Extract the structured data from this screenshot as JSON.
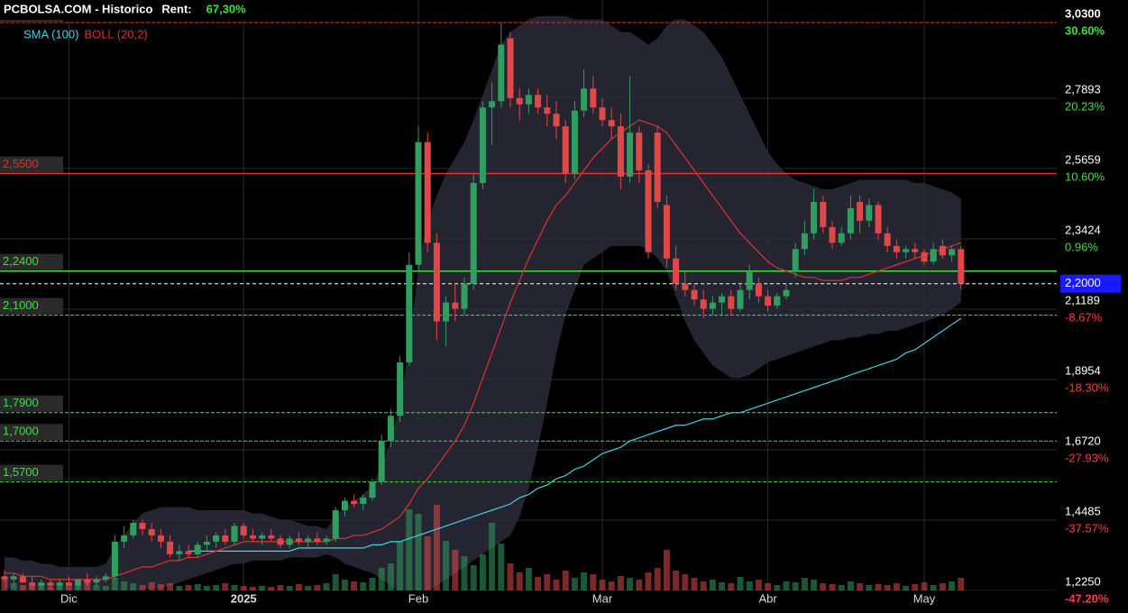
{
  "chart_data": {
    "type": "candlestick",
    "title": "PCBOLSA.COM - Historico",
    "rent_label": "Rent:",
    "rent_value": "67,30%",
    "categories": [
      null,
      null,
      null,
      null,
      null,
      null,
      null,
      "Dic",
      null,
      null,
      null,
      null,
      null,
      null,
      null,
      null,
      null,
      null,
      null,
      null,
      null,
      null,
      null,
      null,
      null,
      null,
      "2025",
      null,
      null,
      null,
      null,
      null,
      null,
      null,
      null,
      null,
      null,
      null,
      null,
      null,
      null,
      null,
      null,
      null,
      null,
      "Feb",
      null,
      null,
      null,
      null,
      null,
      null,
      null,
      null,
      null,
      null,
      null,
      null,
      null,
      null,
      null,
      null,
      null,
      null,
      null,
      "Mar",
      null,
      null,
      null,
      null,
      null,
      null,
      null,
      null,
      null,
      null,
      null,
      null,
      null,
      null,
      null,
      null,
      null,
      "Abr",
      null,
      null,
      null,
      null,
      null,
      null,
      null,
      null,
      null,
      null,
      null,
      null,
      null,
      null,
      null,
      null,
      "May",
      null,
      null,
      null,
      null
    ],
    "ohlc": [
      [
        1.27,
        1.29,
        1.25,
        1.26
      ],
      [
        1.26,
        1.28,
        1.24,
        1.27
      ],
      [
        1.27,
        1.28,
        1.25,
        1.25
      ],
      [
        1.25,
        1.27,
        1.23,
        1.24
      ],
      [
        1.24,
        1.26,
        1.23,
        1.25
      ],
      [
        1.25,
        1.26,
        1.23,
        1.24
      ],
      [
        1.24,
        1.26,
        1.23,
        1.25
      ],
      [
        1.25,
        1.27,
        1.24,
        1.24
      ],
      [
        1.24,
        1.26,
        1.23,
        1.26
      ],
      [
        1.26,
        1.28,
        1.24,
        1.25
      ],
      [
        1.25,
        1.27,
        1.24,
        1.26
      ],
      [
        1.26,
        1.28,
        1.25,
        1.27
      ],
      [
        1.27,
        1.4,
        1.26,
        1.38
      ],
      [
        1.38,
        1.43,
        1.36,
        1.4
      ],
      [
        1.4,
        1.45,
        1.39,
        1.44
      ],
      [
        1.44,
        1.45,
        1.4,
        1.42
      ],
      [
        1.42,
        1.44,
        1.38,
        1.4
      ],
      [
        1.4,
        1.42,
        1.36,
        1.38
      ],
      [
        1.38,
        1.4,
        1.33,
        1.34
      ],
      [
        1.34,
        1.37,
        1.32,
        1.35
      ],
      [
        1.35,
        1.37,
        1.33,
        1.34
      ],
      [
        1.34,
        1.38,
        1.33,
        1.37
      ],
      [
        1.37,
        1.4,
        1.35,
        1.38
      ],
      [
        1.38,
        1.41,
        1.36,
        1.4
      ],
      [
        1.4,
        1.42,
        1.37,
        1.38
      ],
      [
        1.38,
        1.44,
        1.37,
        1.43
      ],
      [
        1.43,
        1.44,
        1.39,
        1.4
      ],
      [
        1.4,
        1.42,
        1.38,
        1.39
      ],
      [
        1.39,
        1.41,
        1.37,
        1.4
      ],
      [
        1.4,
        1.42,
        1.38,
        1.39
      ],
      [
        1.39,
        1.4,
        1.36,
        1.37
      ],
      [
        1.37,
        1.4,
        1.36,
        1.39
      ],
      [
        1.39,
        1.41,
        1.37,
        1.38
      ],
      [
        1.38,
        1.4,
        1.36,
        1.39
      ],
      [
        1.39,
        1.41,
        1.37,
        1.38
      ],
      [
        1.38,
        1.4,
        1.37,
        1.39
      ],
      [
        1.39,
        1.49,
        1.38,
        1.48
      ],
      [
        1.48,
        1.52,
        1.46,
        1.51
      ],
      [
        1.51,
        1.53,
        1.49,
        1.5
      ],
      [
        1.5,
        1.53,
        1.48,
        1.52
      ],
      [
        1.52,
        1.58,
        1.51,
        1.57
      ],
      [
        1.57,
        1.72,
        1.56,
        1.7
      ],
      [
        1.7,
        1.8,
        1.68,
        1.78
      ],
      [
        1.78,
        1.97,
        1.76,
        1.95
      ],
      [
        1.95,
        2.3,
        1.94,
        2.26
      ],
      [
        2.26,
        2.7,
        2.24,
        2.65
      ],
      [
        2.65,
        2.68,
        2.3,
        2.33
      ],
      [
        2.33,
        2.36,
        2.02,
        2.08
      ],
      [
        2.08,
        2.16,
        2.0,
        2.14
      ],
      [
        2.14,
        2.2,
        2.08,
        2.12
      ],
      [
        2.12,
        2.22,
        2.1,
        2.2
      ],
      [
        2.2,
        2.55,
        2.18,
        2.52
      ],
      [
        2.52,
        2.78,
        2.5,
        2.76
      ],
      [
        2.76,
        2.84,
        2.64,
        2.78
      ],
      [
        2.78,
        3.03,
        2.76,
        2.96
      ],
      [
        2.98,
        3.0,
        2.76,
        2.79
      ],
      [
        2.79,
        2.82,
        2.72,
        2.77
      ],
      [
        2.77,
        2.82,
        2.74,
        2.8
      ],
      [
        2.8,
        2.82,
        2.74,
        2.76
      ],
      [
        2.76,
        2.8,
        2.7,
        2.74
      ],
      [
        2.74,
        2.78,
        2.66,
        2.7
      ],
      [
        2.7,
        2.72,
        2.52,
        2.55
      ],
      [
        2.55,
        2.78,
        2.53,
        2.75
      ],
      [
        2.75,
        2.88,
        2.73,
        2.82
      ],
      [
        2.82,
        2.86,
        2.74,
        2.76
      ],
      [
        2.76,
        2.79,
        2.7,
        2.72
      ],
      [
        2.72,
        2.76,
        2.66,
        2.7
      ],
      [
        2.7,
        2.74,
        2.5,
        2.54
      ],
      [
        2.54,
        2.86,
        2.52,
        2.68
      ],
      [
        2.68,
        2.7,
        2.52,
        2.56
      ],
      [
        2.56,
        2.58,
        2.28,
        2.3
      ],
      [
        2.68,
        2.7,
        2.44,
        2.46
      ],
      [
        2.45,
        2.48,
        2.25,
        2.28
      ],
      [
        2.28,
        2.32,
        2.18,
        2.2
      ],
      [
        2.2,
        2.24,
        2.16,
        2.18
      ],
      [
        2.18,
        2.2,
        2.13,
        2.15
      ],
      [
        2.15,
        2.18,
        2.09,
        2.12
      ],
      [
        2.12,
        2.16,
        2.1,
        2.14
      ],
      [
        2.14,
        2.17,
        2.1,
        2.16
      ],
      [
        2.16,
        2.18,
        2.1,
        2.12
      ],
      [
        2.12,
        2.2,
        2.11,
        2.18
      ],
      [
        2.18,
        2.26,
        2.15,
        2.24
      ],
      [
        2.2,
        2.22,
        2.14,
        2.16
      ],
      [
        2.16,
        2.18,
        2.11,
        2.13
      ],
      [
        2.13,
        2.17,
        2.12,
        2.16
      ],
      [
        2.16,
        2.2,
        2.15,
        2.18
      ],
      [
        2.24,
        2.33,
        2.22,
        2.31
      ],
      [
        2.31,
        2.4,
        2.29,
        2.36
      ],
      [
        2.36,
        2.5,
        2.34,
        2.46
      ],
      [
        2.46,
        2.48,
        2.36,
        2.38
      ],
      [
        2.38,
        2.4,
        2.31,
        2.33
      ],
      [
        2.33,
        2.38,
        2.32,
        2.36
      ],
      [
        2.36,
        2.48,
        2.34,
        2.44
      ],
      [
        2.46,
        2.48,
        2.36,
        2.4
      ],
      [
        2.4,
        2.47,
        2.38,
        2.45
      ],
      [
        2.45,
        2.46,
        2.34,
        2.36
      ],
      [
        2.36,
        2.38,
        2.3,
        2.32
      ],
      [
        2.32,
        2.34,
        2.28,
        2.3
      ],
      [
        2.3,
        2.32,
        2.28,
        2.31
      ],
      [
        2.31,
        2.33,
        2.28,
        2.3
      ],
      [
        2.3,
        2.31,
        2.26,
        2.27
      ],
      [
        2.27,
        2.33,
        2.26,
        2.31
      ],
      [
        2.32,
        2.34,
        2.28,
        2.29
      ],
      [
        2.29,
        2.32,
        2.27,
        2.31
      ],
      [
        2.31,
        2.32,
        2.18,
        2.2
      ]
    ],
    "volume": [
      12,
      8,
      6,
      5,
      8,
      4,
      6,
      5,
      7,
      10,
      6,
      5,
      14,
      10,
      8,
      6,
      9,
      7,
      8,
      5,
      6,
      7,
      5,
      6,
      8,
      6,
      5,
      4,
      5,
      4,
      6,
      5,
      7,
      5,
      6,
      8,
      18,
      12,
      10,
      9,
      14,
      25,
      30,
      55,
      90,
      85,
      60,
      95,
      55,
      45,
      38,
      28,
      40,
      75,
      52,
      30,
      20,
      25,
      15,
      18,
      12,
      22,
      14,
      20,
      18,
      12,
      10,
      16,
      14,
      12,
      20,
      25,
      45,
      22,
      18,
      14,
      10,
      12,
      9,
      8,
      15,
      10,
      12,
      8,
      6,
      10,
      9,
      14,
      12,
      8,
      7,
      6,
      10,
      8,
      6,
      7,
      6,
      8,
      5,
      7,
      9,
      6,
      8,
      10,
      14
    ],
    "colors": {
      "up": "#2f9e5e",
      "down": "#e04848",
      "band": "#2b2b3a"
    },
    "indicators": [
      {
        "name": "SMA (100)",
        "color": "#3fd3e6",
        "values": [
          null,
          null,
          null,
          null,
          null,
          null,
          null,
          null,
          null,
          null,
          null,
          null,
          null,
          null,
          null,
          null,
          null,
          null,
          null,
          null,
          1.35,
          1.35,
          1.35,
          1.35,
          1.35,
          1.35,
          1.35,
          1.35,
          1.35,
          1.35,
          1.35,
          1.35,
          1.36,
          1.36,
          1.36,
          1.36,
          1.36,
          1.36,
          1.36,
          1.36,
          1.37,
          1.37,
          1.38,
          1.38,
          1.39,
          1.4,
          1.41,
          1.42,
          1.43,
          1.44,
          1.45,
          1.46,
          1.47,
          1.48,
          1.49,
          1.5,
          1.52,
          1.53,
          1.55,
          1.56,
          1.58,
          1.59,
          1.61,
          1.62,
          1.64,
          1.66,
          1.67,
          1.68,
          1.7,
          1.71,
          1.72,
          1.73,
          1.74,
          1.75,
          1.75,
          1.76,
          1.77,
          1.77,
          1.78,
          1.79,
          1.79,
          1.8,
          1.81,
          1.82,
          1.83,
          1.84,
          1.85,
          1.86,
          1.87,
          1.88,
          1.89,
          1.9,
          1.91,
          1.92,
          1.93,
          1.94,
          1.95,
          1.96,
          1.98,
          1.99,
          2.01,
          2.03,
          2.05,
          2.07,
          2.09
        ]
      },
      {
        "name": "BOLL (20,2)",
        "color": "#e03030",
        "values": [
          1.28,
          1.28,
          1.27,
          1.27,
          1.27,
          1.26,
          1.26,
          1.26,
          1.26,
          1.26,
          1.26,
          1.26,
          1.27,
          1.28,
          1.29,
          1.3,
          1.3,
          1.31,
          1.32,
          1.32,
          1.33,
          1.33,
          1.34,
          1.35,
          1.36,
          1.37,
          1.38,
          1.38,
          1.38,
          1.38,
          1.38,
          1.38,
          1.38,
          1.38,
          1.38,
          1.38,
          1.39,
          1.39,
          1.4,
          1.4,
          1.41,
          1.42,
          1.44,
          1.46,
          1.5,
          1.55,
          1.58,
          1.62,
          1.66,
          1.7,
          1.75,
          1.82,
          1.9,
          1.98,
          2.06,
          2.14,
          2.21,
          2.28,
          2.34,
          2.4,
          2.45,
          2.48,
          2.52,
          2.56,
          2.6,
          2.63,
          2.66,
          2.68,
          2.7,
          2.72,
          2.71,
          2.7,
          2.68,
          2.64,
          2.6,
          2.56,
          2.52,
          2.48,
          2.44,
          2.4,
          2.36,
          2.33,
          2.3,
          2.27,
          2.25,
          2.24,
          2.23,
          2.22,
          2.22,
          2.21,
          2.21,
          2.21,
          2.22,
          2.22,
          2.23,
          2.24,
          2.25,
          2.26,
          2.27,
          2.28,
          2.29,
          2.3,
          2.31,
          2.32,
          2.33
        ],
        "upper": [
          1.33,
          1.33,
          1.32,
          1.32,
          1.31,
          1.31,
          1.3,
          1.3,
          1.3,
          1.3,
          1.3,
          1.31,
          1.36,
          1.4,
          1.44,
          1.47,
          1.48,
          1.49,
          1.49,
          1.49,
          1.49,
          1.48,
          1.48,
          1.48,
          1.48,
          1.48,
          1.48,
          1.47,
          1.47,
          1.46,
          1.45,
          1.45,
          1.44,
          1.43,
          1.43,
          1.42,
          1.46,
          1.49,
          1.51,
          1.53,
          1.56,
          1.62,
          1.7,
          1.82,
          2.0,
          2.25,
          2.4,
          2.48,
          2.55,
          2.6,
          2.65,
          2.72,
          2.8,
          2.88,
          2.96,
          3.0,
          3.02,
          3.04,
          3.05,
          3.05,
          3.05,
          3.05,
          3.04,
          3.04,
          3.04,
          3.04,
          3.02,
          3.0,
          3.0,
          2.98,
          2.96,
          2.98,
          3.02,
          3.04,
          3.04,
          3.02,
          3.0,
          2.96,
          2.92,
          2.86,
          2.8,
          2.74,
          2.68,
          2.62,
          2.58,
          2.55,
          2.53,
          2.52,
          2.51,
          2.5,
          2.5,
          2.51,
          2.52,
          2.53,
          2.53,
          2.53,
          2.53,
          2.53,
          2.53,
          2.52,
          2.52,
          2.51,
          2.5,
          2.49,
          2.47
        ],
        "lower": [
          1.23,
          1.23,
          1.22,
          1.22,
          1.22,
          1.22,
          1.22,
          1.22,
          1.22,
          1.22,
          1.22,
          1.22,
          1.22,
          1.22,
          1.22,
          1.23,
          1.23,
          1.23,
          1.24,
          1.25,
          1.26,
          1.27,
          1.28,
          1.29,
          1.3,
          1.31,
          1.31,
          1.32,
          1.32,
          1.32,
          1.32,
          1.33,
          1.33,
          1.33,
          1.33,
          1.34,
          1.33,
          1.31,
          1.3,
          1.29,
          1.28,
          1.26,
          1.24,
          1.22,
          1.21,
          1.21,
          1.22,
          1.24,
          1.26,
          1.28,
          1.3,
          1.32,
          1.34,
          1.36,
          1.38,
          1.4,
          1.46,
          1.55,
          1.68,
          1.82,
          1.98,
          2.1,
          2.18,
          2.26,
          2.28,
          2.3,
          2.32,
          2.32,
          2.32,
          2.32,
          2.31,
          2.28,
          2.24,
          2.16,
          2.08,
          2.02,
          1.98,
          1.94,
          1.92,
          1.9,
          1.9,
          1.91,
          1.93,
          1.95,
          1.96,
          1.97,
          1.98,
          1.99,
          2.0,
          2.01,
          2.02,
          2.02,
          2.03,
          2.03,
          2.04,
          2.04,
          2.05,
          2.05,
          2.06,
          2.07,
          2.08,
          2.09,
          2.1,
          2.12,
          2.14
        ]
      }
    ],
    "ylim": [
      1.225,
      3.1016
    ],
    "yticks": [
      {
        "value": 3.03,
        "label": "3,0300"
      },
      {
        "value": 2.7893,
        "label": "2,7893"
      },
      {
        "value": 2.5659,
        "label": "2,5659"
      },
      {
        "value": 2.3424,
        "label": "2,3424"
      },
      {
        "value": 2.1189,
        "label": "2,1189"
      },
      {
        "value": 1.8954,
        "label": "1,8954"
      },
      {
        "value": 1.672,
        "label": "1,6720"
      },
      {
        "value": 1.4485,
        "label": "1,4485"
      },
      {
        "value": 1.225,
        "label": "1,2250"
      }
    ],
    "y2lim": [
      -47.2,
      33.68
    ],
    "y2ticks": [
      {
        "value": 30.6,
        "label": "30.60%"
      },
      {
        "value": 20.23,
        "label": "20.23%"
      },
      {
        "value": 10.6,
        "label": "10.60%"
      },
      {
        "value": 0.96,
        "label": "0.96%"
      },
      {
        "value": -8.67,
        "label": "-8.67%"
      },
      {
        "value": -18.3,
        "label": "-18.30%"
      },
      {
        "value": -27.93,
        "label": "-27.93%"
      },
      {
        "value": -37.57,
        "label": "-37.57%"
      },
      {
        "value": -47.2,
        "label": "-47.20%"
      }
    ],
    "levels": [
      {
        "value": 3.03,
        "label": "3,0300",
        "color": "#e03030",
        "style": "dashed"
      },
      {
        "value": 2.55,
        "label": "2,5500",
        "color": "#e03030",
        "style": "solid"
      },
      {
        "value": 2.24,
        "label": "2,2400",
        "color": "#3ee03e",
        "style": "solid"
      },
      {
        "value": 2.1,
        "label": "2,1000",
        "color": "#3ee03e",
        "style": "dashed"
      },
      {
        "value": 1.79,
        "label": "1,7900",
        "color": "#3ee03e",
        "style": "dashed"
      },
      {
        "value": 1.7,
        "label": "1,7000",
        "color": "#3ee03e",
        "style": "dashed"
      },
      {
        "value": 1.57,
        "label": "1,5700",
        "color": "#3ee03e",
        "style": "dashed"
      }
    ],
    "last_price": {
      "value": 2.2,
      "label": "2,2000",
      "color": "#1a1aff"
    },
    "grid": true
  }
}
